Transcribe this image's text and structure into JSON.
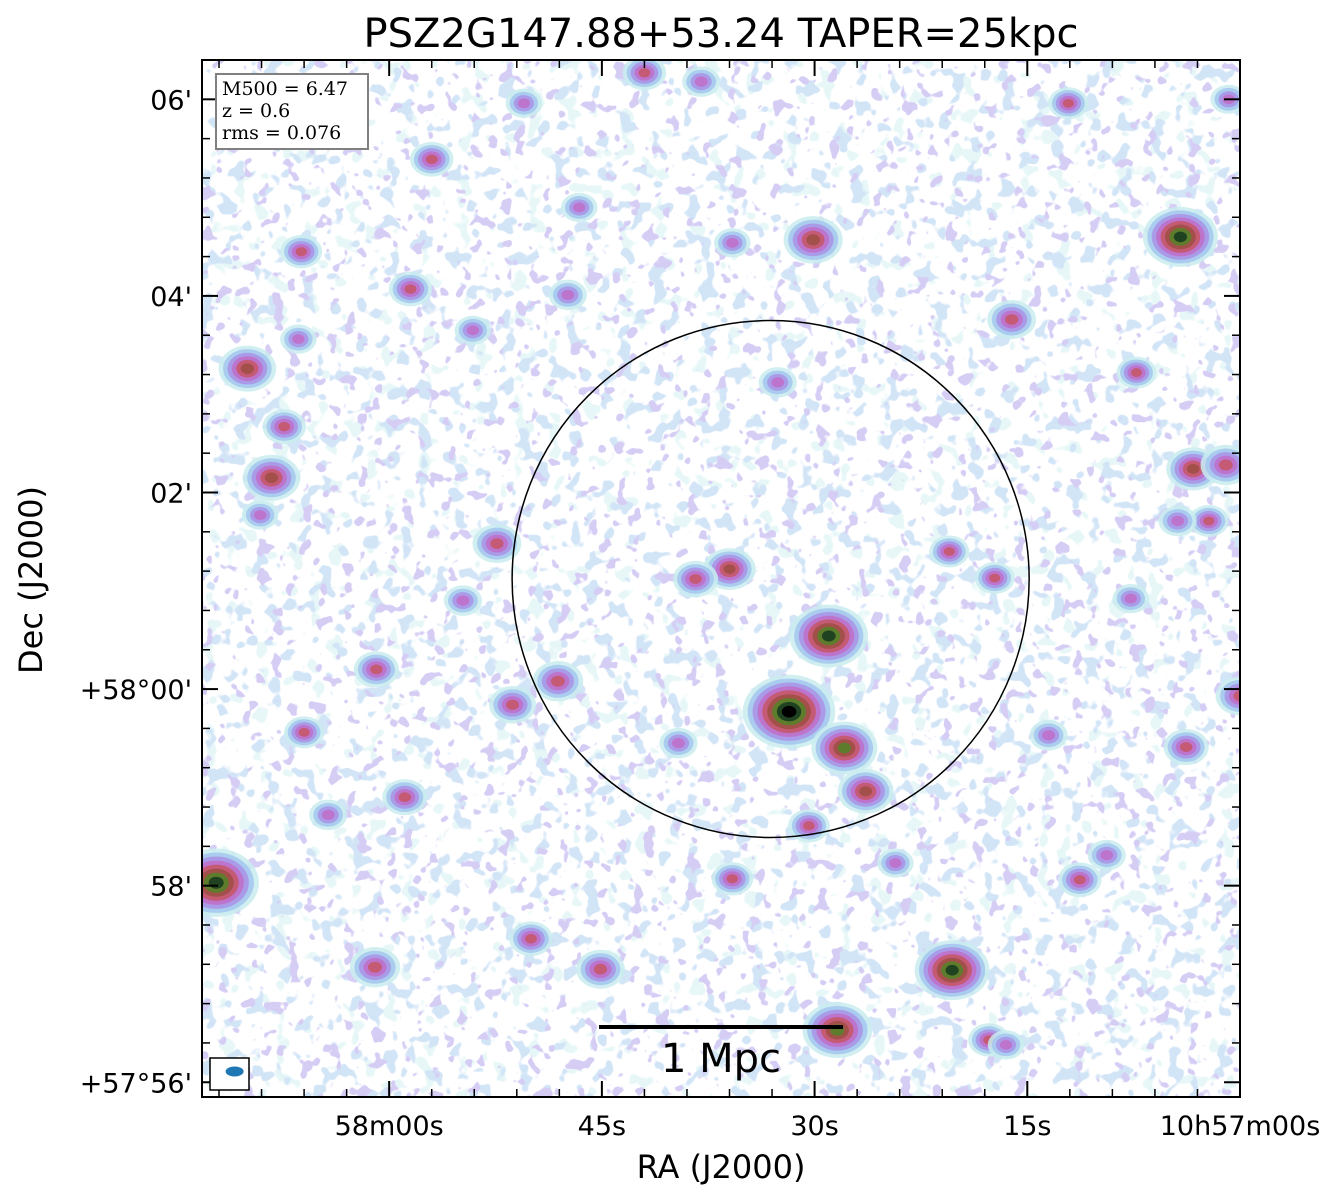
{
  "chart_data": {
    "type": "image",
    "title": "PSZ2G147.88+53.24 TAPER=25kpc",
    "xlabel": "RA (J2000)",
    "ylabel": "Dec (J2000)",
    "x_ticks": [
      "58m00s",
      "45s",
      "30s",
      "15s",
      "10h57m00s"
    ],
    "x_tick_values_sec": [
      180,
      165,
      150,
      135,
      120
    ],
    "y_ticks": [
      "06'",
      "04'",
      "02'",
      "+58°00'",
      "58'",
      "+57°56'"
    ],
    "y_tick_values_arcmin": [
      6,
      4,
      2,
      0,
      -2,
      -4
    ],
    "xlim_sec": [
      193.2,
      120
    ],
    "ylim_arcmin": [
      -4.15,
      6.4
    ],
    "info_box": [
      "M500 = 6.47",
      "z = 0.6",
      "rms = 0.076"
    ],
    "scale_bar_label": "1 Mpc",
    "circle": {
      "ra_sec": 153.1,
      "dec_arcmin": 1.12,
      "radius_arcmin": 2.63
    },
    "beam": {
      "ra_sec": 190.9,
      "dec_arcmin": -3.89,
      "shape": "ellipse"
    },
    "sources": [
      {
        "ra_sec": 151.8,
        "dec_arcmin": -0.23,
        "strength": 4.0
      },
      {
        "ra_sec": 149.0,
        "dec_arcmin": 0.54,
        "strength": 3.2
      },
      {
        "ra_sec": 192.2,
        "dec_arcmin": -1.97,
        "strength": 3.6
      },
      {
        "ra_sec": 124.2,
        "dec_arcmin": 4.6,
        "strength": 3.0
      },
      {
        "ra_sec": 140.3,
        "dec_arcmin": -2.86,
        "strength": 3.0
      },
      {
        "ra_sec": 148.4,
        "dec_arcmin": -3.47,
        "strength": 2.7
      },
      {
        "ra_sec": 147.9,
        "dec_arcmin": -0.6,
        "strength": 2.5
      },
      {
        "ra_sec": 150.1,
        "dec_arcmin": 4.57,
        "strength": 2.1
      },
      {
        "ra_sec": 190.0,
        "dec_arcmin": 3.26,
        "strength": 2.0
      },
      {
        "ra_sec": 188.3,
        "dec_arcmin": 2.15,
        "strength": 2.0
      },
      {
        "ra_sec": 146.4,
        "dec_arcmin": -1.04,
        "strength": 1.9
      },
      {
        "ra_sec": 123.3,
        "dec_arcmin": 2.24,
        "strength": 1.8
      },
      {
        "ra_sec": 121.0,
        "dec_arcmin": 2.28,
        "strength": 1.6
      },
      {
        "ra_sec": 156.0,
        "dec_arcmin": 1.22,
        "strength": 1.7
      },
      {
        "ra_sec": 168.1,
        "dec_arcmin": 0.08,
        "strength": 1.6
      },
      {
        "ra_sec": 172.4,
        "dec_arcmin": 1.48,
        "strength": 1.5
      },
      {
        "ra_sec": 181.0,
        "dec_arcmin": -2.83,
        "strength": 1.6
      },
      {
        "ra_sec": 165.1,
        "dec_arcmin": -2.85,
        "strength": 1.5
      },
      {
        "ra_sec": 120.0,
        "dec_arcmin": -0.07,
        "strength": 1.5
      },
      {
        "ra_sec": 136.1,
        "dec_arcmin": 3.76,
        "strength": 1.5
      },
      {
        "ra_sec": 171.3,
        "dec_arcmin": -0.16,
        "strength": 1.4
      },
      {
        "ra_sec": 158.4,
        "dec_arcmin": 1.12,
        "strength": 1.3
      },
      {
        "ra_sec": 162.0,
        "dec_arcmin": 6.27,
        "strength": 1.2
      },
      {
        "ra_sec": 178.9,
        "dec_arcmin": -1.1,
        "strength": 1.3
      },
      {
        "ra_sec": 123.8,
        "dec_arcmin": -0.59,
        "strength": 1.3
      },
      {
        "ra_sec": 180.9,
        "dec_arcmin": 0.2,
        "strength": 1.3
      },
      {
        "ra_sec": 177.0,
        "dec_arcmin": 5.39,
        "strength": 1.2
      },
      {
        "ra_sec": 178.5,
        "dec_arcmin": 4.07,
        "strength": 1.2
      },
      {
        "ra_sec": 187.4,
        "dec_arcmin": 2.67,
        "strength": 1.2
      },
      {
        "ra_sec": 186.2,
        "dec_arcmin": 4.45,
        "strength": 1.1
      },
      {
        "ra_sec": 131.3,
        "dec_arcmin": -1.94,
        "strength": 1.2
      },
      {
        "ra_sec": 137.7,
        "dec_arcmin": -3.57,
        "strength": 1.1
      },
      {
        "ra_sec": 170.0,
        "dec_arcmin": -2.54,
        "strength": 1.2
      },
      {
        "ra_sec": 132.1,
        "dec_arcmin": 5.96,
        "strength": 1.0
      },
      {
        "ra_sec": 127.3,
        "dec_arcmin": 3.22,
        "strength": 1.0
      },
      {
        "ra_sec": 150.4,
        "dec_arcmin": -1.39,
        "strength": 1.1
      },
      {
        "ra_sec": 155.8,
        "dec_arcmin": -1.93,
        "strength": 1.1
      },
      {
        "ra_sec": 140.5,
        "dec_arcmin": 1.4,
        "strength": 1.0
      },
      {
        "ra_sec": 158.0,
        "dec_arcmin": 6.18,
        "strength": 0.9
      },
      {
        "ra_sec": 174.8,
        "dec_arcmin": 0.9,
        "strength": 0.9
      },
      {
        "ra_sec": 186.0,
        "dec_arcmin": -0.44,
        "strength": 1.0
      },
      {
        "ra_sec": 184.3,
        "dec_arcmin": -1.28,
        "strength": 0.9
      },
      {
        "ra_sec": 159.6,
        "dec_arcmin": -0.55,
        "strength": 0.9
      },
      {
        "ra_sec": 152.6,
        "dec_arcmin": 3.12,
        "strength": 0.9
      },
      {
        "ra_sec": 137.3,
        "dec_arcmin": 1.13,
        "strength": 1.0
      },
      {
        "ra_sec": 122.2,
        "dec_arcmin": 1.71,
        "strength": 1.0
      },
      {
        "ra_sec": 124.4,
        "dec_arcmin": 1.71,
        "strength": 0.9
      },
      {
        "ra_sec": 129.4,
        "dec_arcmin": -1.69,
        "strength": 0.9
      },
      {
        "ra_sec": 133.5,
        "dec_arcmin": -0.47,
        "strength": 0.9
      },
      {
        "ra_sec": 155.8,
        "dec_arcmin": 4.54,
        "strength": 0.8
      },
      {
        "ra_sec": 167.4,
        "dec_arcmin": 4.01,
        "strength": 0.9
      },
      {
        "ra_sec": 174.1,
        "dec_arcmin": 3.65,
        "strength": 0.8
      },
      {
        "ra_sec": 189.1,
        "dec_arcmin": 1.77,
        "strength": 0.8
      },
      {
        "ra_sec": 186.4,
        "dec_arcmin": 3.56,
        "strength": 0.8
      },
      {
        "ra_sec": 144.3,
        "dec_arcmin": -1.77,
        "strength": 0.8
      },
      {
        "ra_sec": 136.5,
        "dec_arcmin": -3.62,
        "strength": 0.8
      },
      {
        "ra_sec": 120.8,
        "dec_arcmin": 6.0,
        "strength": 0.8
      },
      {
        "ra_sec": 127.7,
        "dec_arcmin": 0.92,
        "strength": 0.8
      },
      {
        "ra_sec": 170.5,
        "dec_arcmin": 5.96,
        "strength": 0.8
      },
      {
        "ra_sec": 166.6,
        "dec_arcmin": 4.9,
        "strength": 0.8
      }
    ],
    "colormap": [
      "#c9ecee",
      "#a3c6ee",
      "#aa9be8",
      "#bd74cc",
      "#c45a74",
      "#a4504a",
      "#5e7d2c",
      "#1f4220",
      "#000000"
    ]
  }
}
